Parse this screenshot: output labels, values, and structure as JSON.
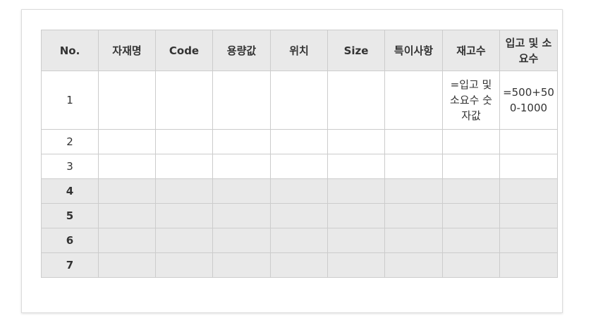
{
  "table": {
    "headers": [
      "No.",
      "자재명",
      "Code",
      "용량값",
      "위치",
      "Size",
      "특이사항",
      "재고수",
      "입고 및 소요수"
    ],
    "rows": [
      {
        "no": "1",
        "cells": [
          "",
          "",
          "",
          "",
          "",
          "",
          "=입고 및 소요수 숫자값",
          "=500+500-1000"
        ]
      },
      {
        "no": "2",
        "cells": [
          "",
          "",
          "",
          "",
          "",
          "",
          "",
          ""
        ]
      },
      {
        "no": "3",
        "cells": [
          "",
          "",
          "",
          "",
          "",
          "",
          "",
          ""
        ]
      },
      {
        "no": "4",
        "cells": [
          "",
          "",
          "",
          "",
          "",
          "",
          "",
          ""
        ]
      },
      {
        "no": "5",
        "cells": [
          "",
          "",
          "",
          "",
          "",
          "",
          "",
          ""
        ]
      },
      {
        "no": "6",
        "cells": [
          "",
          "",
          "",
          "",
          "",
          "",
          "",
          ""
        ]
      },
      {
        "no": "7",
        "cells": [
          "",
          "",
          "",
          "",
          "",
          "",
          "",
          ""
        ]
      }
    ]
  },
  "colors": {
    "header_bg": "#e9e9e9",
    "shaded_row_bg": "#e9e9e9",
    "border": "#cccccc",
    "text": "#333333"
  }
}
